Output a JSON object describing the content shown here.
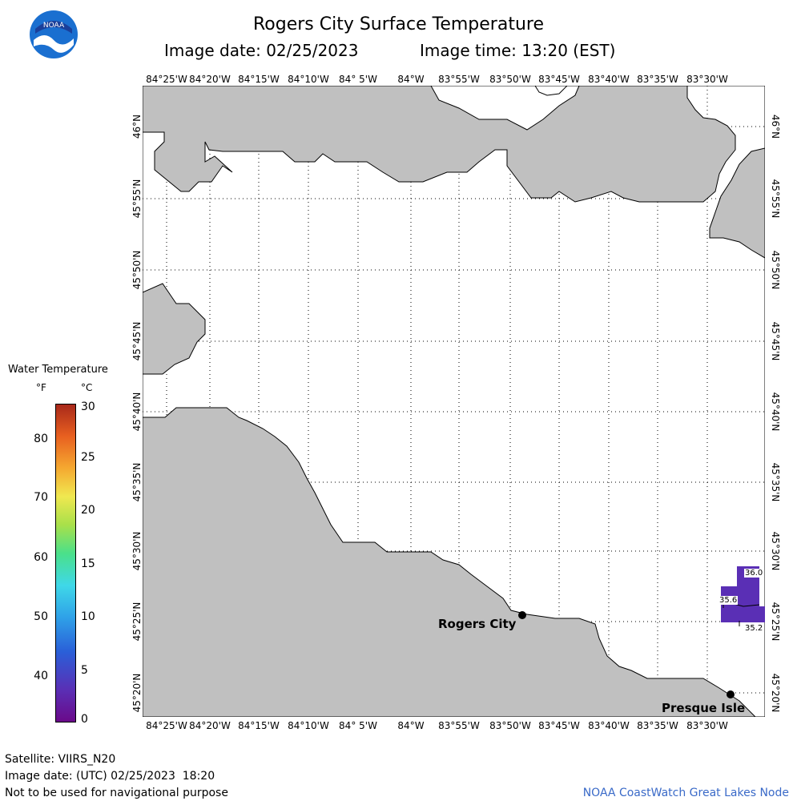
{
  "header": {
    "title": "Rogers City Surface Temperature",
    "image_date": "Image date: 02/25/2023",
    "image_time": "Image time: 13:20 (EST)"
  },
  "logo": {
    "text": "NOAA",
    "icon": "noaa-logo-icon"
  },
  "map": {
    "longitude_labels": [
      "84°25'W",
      "84°20'W",
      "84°15'W",
      "84°10'W",
      "84° 5'W",
      "84°W",
      "83°55'W",
      "83°50'W",
      "83°45'W",
      "83°40'W",
      "83°35'W",
      "83°30'W"
    ],
    "latitude_labels": [
      "46°N",
      "45°55'N",
      "45°50'N",
      "45°45'N",
      "45°40'N",
      "45°35'N",
      "45°30'N",
      "45°25'N",
      "45°20'N"
    ],
    "land_color": "#c0c0c0",
    "water_color": "#ffffff",
    "grid": "dotted",
    "cities": [
      {
        "name": "Rogers City"
      },
      {
        "name": "Presque Isle"
      }
    ],
    "sst_readings": [
      "36.0",
      "35.6",
      "35.2"
    ],
    "sst_color": "#5a2fb5"
  },
  "legend": {
    "title": "Water Temperature",
    "unit_f": "°F",
    "unit_c": "°C",
    "f_ticks": [
      "80",
      "70",
      "60",
      "50",
      "40"
    ],
    "c_ticks": [
      "30",
      "25",
      "20",
      "15",
      "10",
      "5",
      "0"
    ]
  },
  "footer": {
    "satellite": "Satellite: VIIRS_N20",
    "image_date_utc": "Image date: (UTC) 02/25/2023  18:20",
    "disclaimer": "Not to be used for navigational purpose",
    "node": "NOAA CoastWatch Great Lakes Node"
  }
}
